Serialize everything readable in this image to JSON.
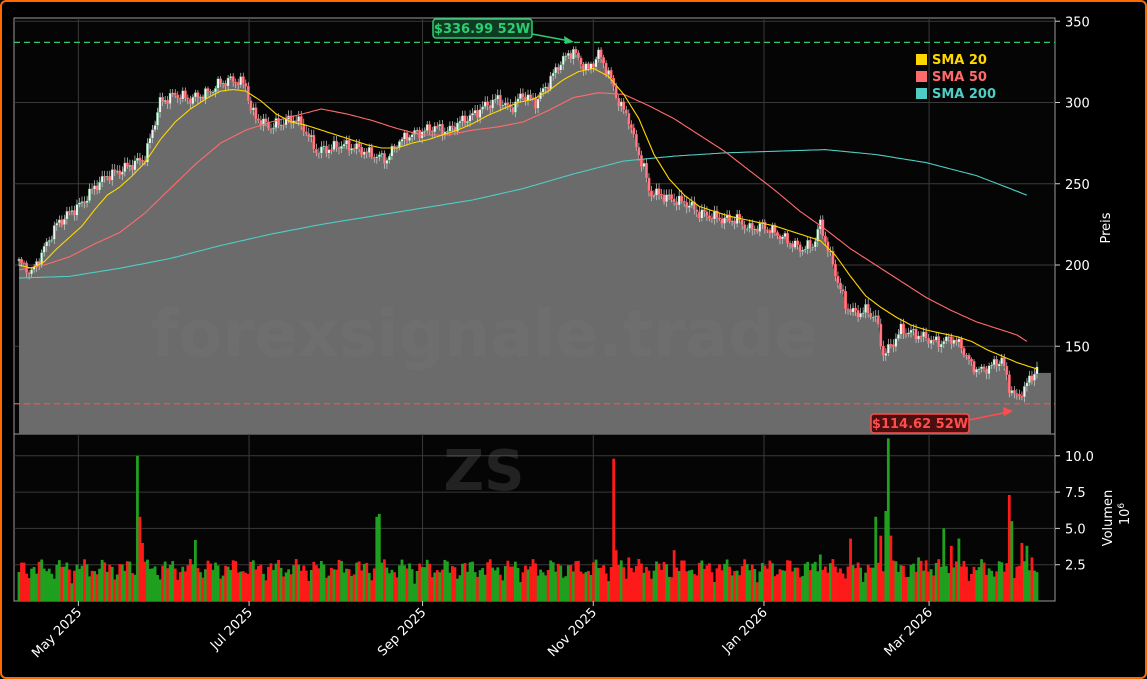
{
  "chart_data": {
    "type": "candlestick",
    "watermark": "forexsignale.trade",
    "ticker": "ZS",
    "price_axis": {
      "label": "Preis",
      "ticks": [
        150,
        200,
        250,
        300,
        350
      ],
      "range": [
        96,
        352
      ]
    },
    "volume_axis": {
      "label": "Volumen",
      "exponent_label": "10",
      "exponent_power": "6",
      "ticks": [
        2.5,
        5.0,
        7.5,
        10.0
      ],
      "tick_labels": [
        "2.5",
        "5.0",
        "7.5",
        "10.0"
      ],
      "range": [
        0,
        11.5
      ]
    },
    "x_axis": {
      "tick_labels": [
        "May 2025",
        "Jul 2025",
        "Sep 2025",
        "Nov 2025",
        "Jan 2026",
        "Mar 2026"
      ],
      "tick_dates": [
        "2025-05-01",
        "2025-07-01",
        "2025-09-01",
        "2025-11-01",
        "2026-01-01",
        "2026-03-01"
      ]
    },
    "date_range": [
      "2025-04-08",
      "2026-04-15"
    ],
    "legend": {
      "position": "top-right",
      "items": [
        {
          "name": "SMA 20",
          "color": "#ffd700"
        },
        {
          "name": "SMA 50",
          "color": "#ff6b6b"
        },
        {
          "name": "SMA 200",
          "color": "#4ecdc4"
        }
      ]
    },
    "annotations": {
      "high": {
        "label": "$336.99 52W",
        "value": 336.99,
        "color": "#2ecc71"
      },
      "low": {
        "label": "$114.62 52W",
        "value": 114.62,
        "color": "#ff4d4d"
      }
    },
    "close_anchors": [
      [
        0,
        202
      ],
      [
        5,
        195
      ],
      [
        10,
        210
      ],
      [
        15,
        225
      ],
      [
        20,
        232
      ],
      [
        25,
        238
      ],
      [
        30,
        248
      ],
      [
        35,
        255
      ],
      [
        40,
        258
      ],
      [
        45,
        262
      ],
      [
        50,
        266
      ],
      [
        56,
        300
      ],
      [
        62,
        305
      ],
      [
        68,
        302
      ],
      [
        75,
        306
      ],
      [
        80,
        312
      ],
      [
        85,
        314
      ],
      [
        90,
        311
      ],
      [
        92,
        295
      ],
      [
        96,
        288
      ],
      [
        100,
        285
      ],
      [
        105,
        288
      ],
      [
        110,
        290
      ],
      [
        114,
        282
      ],
      [
        118,
        270
      ],
      [
        124,
        272
      ],
      [
        128,
        274
      ],
      [
        134,
        272
      ],
      [
        140,
        268
      ],
      [
        146,
        265
      ],
      [
        150,
        275
      ],
      [
        155,
        280
      ],
      [
        160,
        282
      ],
      [
        165,
        285
      ],
      [
        170,
        282
      ],
      [
        175,
        288
      ],
      [
        180,
        292
      ],
      [
        185,
        298
      ],
      [
        190,
        302
      ],
      [
        195,
        296
      ],
      [
        200,
        305
      ],
      [
        205,
        300
      ],
      [
        210,
        312
      ],
      [
        215,
        325
      ],
      [
        220,
        332
      ],
      [
        222,
        326
      ],
      [
        226,
        320
      ],
      [
        230,
        330
      ],
      [
        234,
        318
      ],
      [
        238,
        300
      ],
      [
        242,
        290
      ],
      [
        245,
        272
      ],
      [
        248,
        260
      ],
      [
        250,
        245
      ],
      [
        255,
        243
      ],
      [
        260,
        240
      ],
      [
        265,
        238
      ],
      [
        270,
        232
      ],
      [
        275,
        230
      ],
      [
        280,
        228
      ],
      [
        285,
        228
      ],
      [
        290,
        222
      ],
      [
        295,
        224
      ],
      [
        300,
        220
      ],
      [
        305,
        215
      ],
      [
        310,
        210
      ],
      [
        315,
        212
      ],
      [
        318,
        225
      ],
      [
        322,
        205
      ],
      [
        325,
        190
      ],
      [
        328,
        175
      ],
      [
        332,
        170
      ],
      [
        336,
        172
      ],
      [
        340,
        168
      ],
      [
        343,
        145
      ],
      [
        346,
        150
      ],
      [
        350,
        160
      ],
      [
        355,
        158
      ],
      [
        360,
        155
      ],
      [
        365,
        152
      ],
      [
        370,
        155
      ],
      [
        374,
        150
      ],
      [
        378,
        138
      ],
      [
        382,
        135
      ],
      [
        386,
        138
      ],
      [
        390,
        142
      ],
      [
        393,
        125
      ],
      [
        396,
        118
      ],
      [
        399,
        124
      ],
      [
        402,
        132
      ],
      [
        404,
        136
      ]
    ],
    "sma20_anchors": [
      [
        0,
        200
      ],
      [
        5,
        198
      ],
      [
        10,
        202
      ],
      [
        15,
        210
      ],
      [
        20,
        217
      ],
      [
        25,
        224
      ],
      [
        30,
        234
      ],
      [
        35,
        243
      ],
      [
        40,
        248
      ],
      [
        45,
        255
      ],
      [
        50,
        263
      ],
      [
        56,
        277
      ],
      [
        62,
        288
      ],
      [
        68,
        296
      ],
      [
        75,
        303
      ],
      [
        80,
        307
      ],
      [
        85,
        308
      ],
      [
        90,
        307
      ],
      [
        96,
        301
      ],
      [
        102,
        293
      ],
      [
        108,
        288
      ],
      [
        114,
        286
      ],
      [
        120,
        283
      ],
      [
        126,
        280
      ],
      [
        132,
        277
      ],
      [
        138,
        274
      ],
      [
        144,
        272
      ],
      [
        150,
        272
      ],
      [
        156,
        275
      ],
      [
        162,
        277
      ],
      [
        168,
        280
      ],
      [
        174,
        283
      ],
      [
        180,
        287
      ],
      [
        186,
        292
      ],
      [
        192,
        296
      ],
      [
        198,
        300
      ],
      [
        204,
        302
      ],
      [
        210,
        307
      ],
      [
        216,
        314
      ],
      [
        222,
        319
      ],
      [
        228,
        321
      ],
      [
        234,
        316
      ],
      [
        240,
        305
      ],
      [
        246,
        290
      ],
      [
        252,
        268
      ],
      [
        258,
        253
      ],
      [
        264,
        243
      ],
      [
        270,
        236
      ],
      [
        276,
        233
      ],
      [
        282,
        230
      ],
      [
        288,
        228
      ],
      [
        294,
        226
      ],
      [
        300,
        224
      ],
      [
        306,
        221
      ],
      [
        312,
        218
      ],
      [
        318,
        215
      ],
      [
        324,
        206
      ],
      [
        330,
        193
      ],
      [
        336,
        181
      ],
      [
        342,
        174
      ],
      [
        348,
        168
      ],
      [
        354,
        163
      ],
      [
        360,
        160
      ],
      [
        366,
        158
      ],
      [
        372,
        156
      ],
      [
        378,
        153
      ],
      [
        384,
        148
      ],
      [
        390,
        144
      ],
      [
        396,
        140
      ],
      [
        402,
        137
      ],
      [
        404,
        136
      ]
    ],
    "sma50_anchors": [
      [
        0,
        197
      ],
      [
        10,
        200
      ],
      [
        20,
        205
      ],
      [
        30,
        213
      ],
      [
        40,
        220
      ],
      [
        50,
        232
      ],
      [
        60,
        247
      ],
      [
        70,
        262
      ],
      [
        80,
        275
      ],
      [
        90,
        283
      ],
      [
        100,
        288
      ],
      [
        110,
        292
      ],
      [
        120,
        296
      ],
      [
        130,
        293
      ],
      [
        140,
        289
      ],
      [
        150,
        284
      ],
      [
        160,
        280
      ],
      [
        170,
        280
      ],
      [
        180,
        283
      ],
      [
        190,
        285
      ],
      [
        200,
        288
      ],
      [
        210,
        295
      ],
      [
        220,
        303
      ],
      [
        230,
        306
      ],
      [
        240,
        305
      ],
      [
        250,
        298
      ],
      [
        260,
        290
      ],
      [
        270,
        280
      ],
      [
        280,
        270
      ],
      [
        290,
        258
      ],
      [
        300,
        246
      ],
      [
        310,
        233
      ],
      [
        320,
        222
      ],
      [
        330,
        210
      ],
      [
        340,
        200
      ],
      [
        350,
        190
      ],
      [
        360,
        180
      ],
      [
        370,
        172
      ],
      [
        380,
        165
      ],
      [
        390,
        160
      ],
      [
        396,
        157
      ],
      [
        400,
        153
      ]
    ],
    "sma200_anchors": [
      [
        0,
        192
      ],
      [
        20,
        193
      ],
      [
        40,
        198
      ],
      [
        60,
        204
      ],
      [
        80,
        212
      ],
      [
        100,
        219
      ],
      [
        120,
        225
      ],
      [
        140,
        230
      ],
      [
        160,
        235
      ],
      [
        180,
        240
      ],
      [
        200,
        247
      ],
      [
        220,
        256
      ],
      [
        240,
        264
      ],
      [
        260,
        267
      ],
      [
        280,
        269
      ],
      [
        300,
        270
      ],
      [
        320,
        271
      ],
      [
        340,
        268
      ],
      [
        360,
        263
      ],
      [
        380,
        255
      ],
      [
        400,
        243
      ]
    ],
    "volume_spikes": [
      [
        47,
        10.0
      ],
      [
        48,
        5.8
      ],
      [
        49,
        4.0
      ],
      [
        70,
        4.2
      ],
      [
        142,
        5.8
      ],
      [
        143,
        6.0
      ],
      [
        236,
        9.8
      ],
      [
        237,
        3.5
      ],
      [
        242,
        3.0
      ],
      [
        260,
        3.5
      ],
      [
        318,
        3.2
      ],
      [
        330,
        4.3
      ],
      [
        340,
        5.8
      ],
      [
        342,
        4.5
      ],
      [
        344,
        6.2
      ],
      [
        345,
        11.2
      ],
      [
        346,
        4.5
      ],
      [
        357,
        3.0
      ],
      [
        360,
        2.8
      ],
      [
        367,
        5.0
      ],
      [
        370,
        3.8
      ],
      [
        373,
        4.3
      ],
      [
        393,
        7.3
      ],
      [
        394,
        5.5
      ],
      [
        398,
        4.0
      ],
      [
        400,
        3.8
      ],
      [
        402,
        3.0
      ]
    ]
  }
}
